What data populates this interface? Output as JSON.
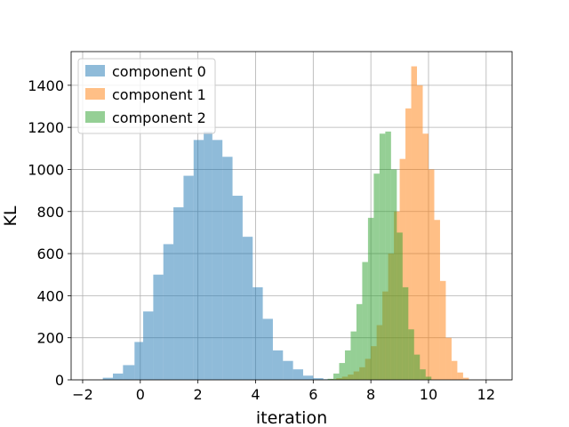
{
  "chart_data": {
    "type": "histogram",
    "xlabel": "iteration",
    "ylabel": "KL",
    "xlim": [
      -2.4,
      12.9
    ],
    "ylim": [
      0,
      1560
    ],
    "x_ticks": [
      -2,
      0,
      2,
      4,
      6,
      8,
      10,
      12
    ],
    "y_ticks": [
      0,
      200,
      400,
      600,
      800,
      1000,
      1200,
      1400
    ],
    "grid": true,
    "legend_position": "top-left",
    "series": [
      {
        "name": "component 0",
        "color": "#1f77b4",
        "opacity": 0.5,
        "bins": [
          {
            "x0": -1.3,
            "x1": -0.95,
            "count": 10
          },
          {
            "x0": -0.95,
            "x1": -0.6,
            "count": 30
          },
          {
            "x0": -0.6,
            "x1": -0.2,
            "count": 70
          },
          {
            "x0": -0.2,
            "x1": 0.1,
            "count": 180
          },
          {
            "x0": 0.1,
            "x1": 0.45,
            "count": 325
          },
          {
            "x0": 0.45,
            "x1": 0.8,
            "count": 500
          },
          {
            "x0": 0.8,
            "x1": 1.15,
            "count": 645
          },
          {
            "x0": 1.15,
            "x1": 1.5,
            "count": 820
          },
          {
            "x0": 1.5,
            "x1": 1.85,
            "count": 970
          },
          {
            "x0": 1.85,
            "x1": 2.2,
            "count": 1140
          },
          {
            "x0": 2.2,
            "x1": 2.5,
            "count": 1180
          },
          {
            "x0": 2.5,
            "x1": 2.85,
            "count": 1140
          },
          {
            "x0": 2.85,
            "x1": 3.2,
            "count": 1060
          },
          {
            "x0": 3.2,
            "x1": 3.55,
            "count": 875
          },
          {
            "x0": 3.55,
            "x1": 3.9,
            "count": 680
          },
          {
            "x0": 3.9,
            "x1": 4.25,
            "count": 440
          },
          {
            "x0": 4.25,
            "x1": 4.6,
            "count": 290
          },
          {
            "x0": 4.6,
            "x1": 4.95,
            "count": 140
          },
          {
            "x0": 4.95,
            "x1": 5.3,
            "count": 90
          },
          {
            "x0": 5.3,
            "x1": 5.65,
            "count": 50
          },
          {
            "x0": 5.65,
            "x1": 6.0,
            "count": 20
          },
          {
            "x0": 6.0,
            "x1": 6.35,
            "count": 8
          },
          {
            "x0": 6.35,
            "x1": 6.7,
            "count": 3
          }
        ]
      },
      {
        "name": "component 1",
        "color": "#ff7f0e",
        "opacity": 0.5,
        "bins": [
          {
            "x0": 6.6,
            "x1": 6.8,
            "count": 3
          },
          {
            "x0": 6.8,
            "x1": 7.0,
            "count": 8
          },
          {
            "x0": 7.0,
            "x1": 7.2,
            "count": 15
          },
          {
            "x0": 7.2,
            "x1": 7.4,
            "count": 25
          },
          {
            "x0": 7.4,
            "x1": 7.6,
            "count": 40
          },
          {
            "x0": 7.6,
            "x1": 7.8,
            "count": 60
          },
          {
            "x0": 7.8,
            "x1": 8.0,
            "count": 100
          },
          {
            "x0": 8.0,
            "x1": 8.2,
            "count": 160
          },
          {
            "x0": 8.2,
            "x1": 8.4,
            "count": 260
          },
          {
            "x0": 8.4,
            "x1": 8.6,
            "count": 420
          },
          {
            "x0": 8.6,
            "x1": 8.8,
            "count": 600
          },
          {
            "x0": 8.8,
            "x1": 9.0,
            "count": 800
          },
          {
            "x0": 9.0,
            "x1": 9.2,
            "count": 1050
          },
          {
            "x0": 9.2,
            "x1": 9.4,
            "count": 1290
          },
          {
            "x0": 9.4,
            "x1": 9.6,
            "count": 1490
          },
          {
            "x0": 9.6,
            "x1": 9.8,
            "count": 1400
          },
          {
            "x0": 9.8,
            "x1": 10.0,
            "count": 1170
          },
          {
            "x0": 10.0,
            "x1": 10.2,
            "count": 1000
          },
          {
            "x0": 10.2,
            "x1": 10.4,
            "count": 760
          },
          {
            "x0": 10.4,
            "x1": 10.6,
            "count": 470
          },
          {
            "x0": 10.6,
            "x1": 10.8,
            "count": 200
          },
          {
            "x0": 10.8,
            "x1": 11.0,
            "count": 90
          },
          {
            "x0": 11.0,
            "x1": 11.2,
            "count": 35
          },
          {
            "x0": 11.2,
            "x1": 11.4,
            "count": 10
          }
        ]
      },
      {
        "name": "component 2",
        "color": "#2ca02c",
        "opacity": 0.5,
        "bins": [
          {
            "x0": 6.5,
            "x1": 6.7,
            "count": 5
          },
          {
            "x0": 6.7,
            "x1": 6.9,
            "count": 30
          },
          {
            "x0": 6.9,
            "x1": 7.1,
            "count": 80
          },
          {
            "x0": 7.1,
            "x1": 7.3,
            "count": 140
          },
          {
            "x0": 7.3,
            "x1": 7.5,
            "count": 230
          },
          {
            "x0": 7.5,
            "x1": 7.7,
            "count": 360
          },
          {
            "x0": 7.7,
            "x1": 7.9,
            "count": 560
          },
          {
            "x0": 7.9,
            "x1": 8.1,
            "count": 770
          },
          {
            "x0": 8.1,
            "x1": 8.3,
            "count": 980
          },
          {
            "x0": 8.3,
            "x1": 8.5,
            "count": 1170
          },
          {
            "x0": 8.5,
            "x1": 8.7,
            "count": 1180
          },
          {
            "x0": 8.7,
            "x1": 8.9,
            "count": 1000
          },
          {
            "x0": 8.9,
            "x1": 9.1,
            "count": 700
          },
          {
            "x0": 9.1,
            "x1": 9.3,
            "count": 440
          },
          {
            "x0": 9.3,
            "x1": 9.5,
            "count": 240
          },
          {
            "x0": 9.5,
            "x1": 9.7,
            "count": 120
          },
          {
            "x0": 9.7,
            "x1": 9.9,
            "count": 50
          },
          {
            "x0": 9.9,
            "x1": 10.1,
            "count": 15
          }
        ]
      }
    ]
  }
}
